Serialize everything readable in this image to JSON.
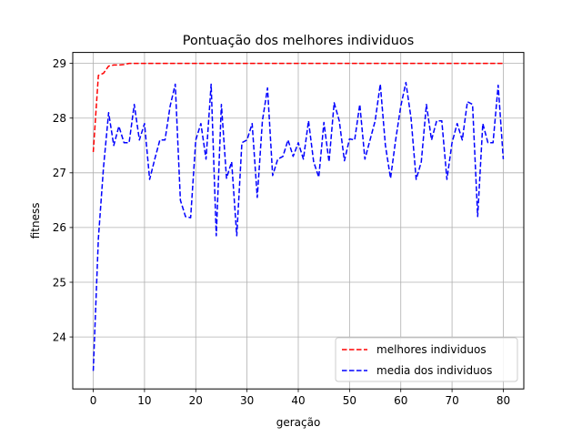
{
  "chart_data": {
    "type": "line",
    "title": "Pontuação dos melhores individuos",
    "xlabel": "geração",
    "ylabel": "fitness",
    "xlim": [
      -4,
      84
    ],
    "ylim": [
      23.05,
      29.2
    ],
    "xticks": [
      0,
      10,
      20,
      30,
      40,
      50,
      60,
      70,
      80
    ],
    "yticks": [
      24,
      25,
      26,
      27,
      28,
      29
    ],
    "grid": true,
    "legend_position": "lower-right",
    "x": [
      0,
      1,
      2,
      3,
      4,
      5,
      6,
      7,
      8,
      9,
      10,
      11,
      12,
      13,
      14,
      15,
      16,
      17,
      18,
      19,
      20,
      21,
      22,
      23,
      24,
      25,
      26,
      27,
      28,
      29,
      30,
      31,
      32,
      33,
      34,
      35,
      36,
      37,
      38,
      39,
      40,
      41,
      42,
      43,
      44,
      45,
      46,
      47,
      48,
      49,
      50,
      51,
      52,
      53,
      54,
      55,
      56,
      57,
      58,
      59,
      60,
      61,
      62,
      63,
      64,
      65,
      66,
      67,
      68,
      69,
      70,
      71,
      72,
      73,
      74,
      75,
      76,
      77,
      78,
      79,
      80
    ],
    "series": [
      {
        "name": "melhores individuos",
        "color": "#ff0000",
        "style": "dashed",
        "values": [
          27.38,
          28.78,
          28.82,
          28.95,
          28.97,
          28.97,
          28.98,
          29.0,
          29.0,
          29.0,
          29.0,
          29.0,
          29.0,
          29.0,
          29.0,
          29.0,
          29.0,
          29.0,
          29.0,
          29.0,
          29.0,
          29.0,
          29.0,
          29.0,
          29.0,
          29.0,
          29.0,
          29.0,
          29.0,
          29.0,
          29.0,
          29.0,
          29.0,
          29.0,
          29.0,
          29.0,
          29.0,
          29.0,
          29.0,
          29.0,
          29.0,
          29.0,
          29.0,
          29.0,
          29.0,
          29.0,
          29.0,
          29.0,
          29.0,
          29.0,
          29.0,
          29.0,
          29.0,
          29.0,
          29.0,
          29.0,
          29.0,
          29.0,
          29.0,
          29.0,
          29.0,
          29.0,
          29.0,
          29.0,
          29.0,
          29.0,
          29.0,
          29.0,
          29.0,
          29.0,
          29.0,
          29.0,
          29.0,
          29.0,
          29.0,
          29.0,
          29.0,
          29.0,
          29.0,
          29.0,
          29.0
        ]
      },
      {
        "name": "media dos individuos",
        "color": "#0000ff",
        "style": "dashed",
        "values": [
          23.38,
          25.8,
          27.1,
          28.1,
          27.5,
          27.85,
          27.55,
          27.55,
          28.25,
          27.6,
          27.9,
          26.88,
          27.25,
          27.6,
          27.6,
          28.22,
          28.62,
          26.5,
          26.2,
          26.18,
          27.6,
          27.9,
          27.25,
          28.62,
          25.85,
          28.25,
          26.9,
          27.2,
          25.85,
          27.55,
          27.6,
          27.9,
          26.55,
          27.95,
          28.55,
          26.95,
          27.25,
          27.3,
          27.6,
          27.3,
          27.55,
          27.25,
          27.95,
          27.2,
          26.92,
          27.92,
          27.2,
          28.28,
          27.95,
          27.22,
          27.62,
          27.6,
          28.25,
          27.25,
          27.6,
          27.95,
          28.62,
          27.5,
          26.9,
          27.6,
          28.22,
          28.65,
          28.0,
          26.88,
          27.2,
          28.25,
          27.6,
          27.95,
          27.95,
          26.88,
          27.55,
          27.9,
          27.6,
          28.3,
          28.25,
          26.2,
          27.9,
          27.55,
          27.55,
          28.6,
          27.25
        ]
      }
    ]
  }
}
